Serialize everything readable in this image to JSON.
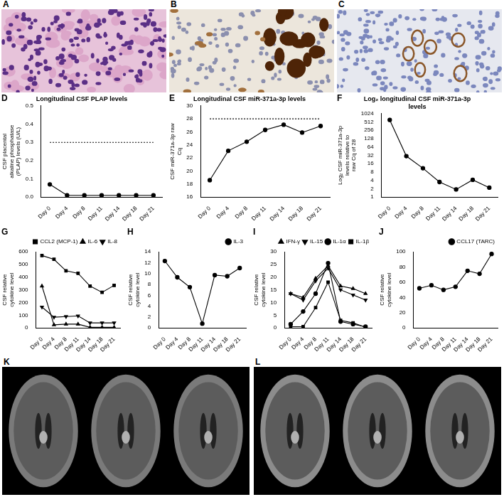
{
  "image_panels": [
    "A",
    "B",
    "C",
    "K",
    "L"
  ],
  "chart_data": [
    {
      "panel": "D",
      "type": "line",
      "title": "Longitudinal CSF PLAP levels",
      "ylabel": "CSF placental alkaline phosphatase (PLAP) levels (U/L)",
      "categories": [
        "Day 0",
        "Day 4",
        "Day 8",
        "Day 11",
        "Day 14",
        "Day 18",
        "Day 21"
      ],
      "series": [
        {
          "color": "#000000",
          "marker": "circle",
          "line_style": "solid",
          "values": [
            0.07,
            0.01,
            0.01,
            0.01,
            0.01,
            0.01,
            0.01
          ]
        },
        {
          "color": "#000000",
          "marker": "none",
          "line_style": "dotted",
          "values": [
            0.3,
            0.3,
            0.3,
            0.3,
            0.3,
            0.3,
            0.3
          ]
        }
      ],
      "ylim": [
        0,
        0.5
      ],
      "yticks": [
        {
          "value": 0,
          "label": "0.0"
        },
        {
          "value": 0.1,
          "label": "0.1"
        },
        {
          "value": 0.2,
          "label": "0.2"
        },
        {
          "value": 0.3,
          "label": "0.3"
        },
        {
          "value": 0.4,
          "label": "0.4"
        },
        {
          "value": 0.5,
          "label": "0.5"
        }
      ],
      "grid": false
    },
    {
      "panel": "E",
      "type": "line",
      "title": "Longitudinal CSF miR-371a-3p levels",
      "ylabel": "CSF miR-371a-3p raw Cq",
      "categories": [
        "Day 0",
        "Day 4",
        "Day 8",
        "Day 11",
        "Day 14",
        "Day 18",
        "Day 21"
      ],
      "series": [
        {
          "color": "#000000",
          "marker": "circle",
          "line_style": "solid",
          "values": [
            18.6,
            23.1,
            24.5,
            26.3,
            27.1,
            25.9,
            26.9
          ]
        },
        {
          "color": "#000000",
          "marker": "none",
          "line_style": "dotted",
          "values": [
            28,
            28,
            28,
            28,
            28,
            28,
            28
          ]
        }
      ],
      "ylim": [
        16,
        30
      ],
      "yticks": [
        16,
        18,
        20,
        22,
        24,
        26,
        28,
        30
      ],
      "grid": false
    },
    {
      "panel": "F",
      "type": "line",
      "title": "Log₂ longitudinal CSF miR-371a-3p levels",
      "ylabel": "Log₂ CSF miR-371a-3p levels relative to raw Cq of 28",
      "categories": [
        "Day 0",
        "Day 4",
        "Day 8",
        "Day 11",
        "Day 14",
        "Day 18",
        "Day 21"
      ],
      "series": [
        {
          "color": "#000000",
          "marker": "circle",
          "line_style": "solid",
          "values": [
            600,
            30,
            11,
            3.5,
            1.9,
            4.2,
            2.2
          ]
        }
      ],
      "log": "y",
      "ylim": [
        1,
        1024
      ],
      "yticks": [
        1,
        2,
        4,
        8,
        16,
        32,
        64,
        128,
        256,
        512,
        1024
      ],
      "grid": false
    },
    {
      "panel": "G",
      "type": "line",
      "ylabel": "CSF relative cytokine level",
      "categories": [
        "Day 0",
        "Day 4",
        "Day 8",
        "Day 11",
        "Day 14",
        "Day 18",
        "Day 21"
      ],
      "series": [
        {
          "name": "CCL2 (MCP-1)",
          "color": "#000000",
          "marker": "square",
          "line_style": "solid",
          "values": [
            570,
            540,
            450,
            430,
            330,
            280,
            335
          ]
        },
        {
          "name": "IL-6",
          "color": "#000000",
          "marker": "triangle",
          "line_style": "solid",
          "values": [
            330,
            25,
            30,
            30,
            5,
            5,
            5
          ]
        },
        {
          "name": "IL-8",
          "color": "#000000",
          "marker": "triangle_down",
          "line_style": "solid",
          "values": [
            165,
            85,
            90,
            95,
            40,
            40,
            40
          ]
        }
      ],
      "ylim": [
        0,
        600
      ],
      "yticks": [
        0,
        100,
        200,
        300,
        400,
        500,
        600
      ],
      "legend": "top right",
      "grid": false
    },
    {
      "panel": "H",
      "type": "line",
      "ylabel": "CSF relative cytokine level",
      "categories": [
        "Day 0",
        "Day 4",
        "Day 8",
        "Day 11",
        "Day 14",
        "Day 18",
        "Day 21"
      ],
      "series": [
        {
          "name": "IL-3",
          "color": "#000000",
          "marker": "circle",
          "line_style": "solid",
          "values": [
            12.3,
            9.3,
            7.5,
            0.8,
            9.7,
            9.5,
            11.0
          ]
        }
      ],
      "ylim": [
        0,
        14
      ],
      "yticks": [
        0,
        2,
        4,
        6,
        8,
        10,
        12,
        14
      ],
      "legend": "top right",
      "grid": false
    },
    {
      "panel": "I",
      "type": "line",
      "ylabel": "CSF relative cytokine level",
      "categories": [
        "Day 0",
        "Day 4",
        "Day 8",
        "Day 11",
        "Day 14",
        "Day 18",
        "Day 21"
      ],
      "series": [
        {
          "name": "IFN-γ",
          "color": "#000000",
          "marker": "triangle",
          "line_style": "solid",
          "values": [
            13.5,
            12,
            19.5,
            24.5,
            16.5,
            15.5,
            13.5
          ]
        },
        {
          "name": "IL-15",
          "color": "#000000",
          "marker": "triangle_down",
          "line_style": "solid",
          "values": [
            13.5,
            11,
            18.5,
            23.5,
            15,
            13,
            11
          ]
        },
        {
          "name": "IL-1α",
          "color": "#000000",
          "marker": "circle",
          "line_style": "solid",
          "values": [
            1.5,
            6.5,
            13.5,
            25.5,
            2.5,
            1.5,
            0.5
          ]
        },
        {
          "name": "IL-1β",
          "color": "#000000",
          "marker": "square",
          "line_style": "solid",
          "values": [
            0.5,
            0.5,
            8,
            18,
            3,
            2,
            0.3
          ]
        }
      ],
      "ylim": [
        0,
        30
      ],
      "yticks": [
        0,
        5,
        10,
        15,
        20,
        25,
        30
      ],
      "legend": "top right",
      "grid": false
    },
    {
      "panel": "J",
      "type": "line",
      "ylabel": "CSF relative cytokine level",
      "categories": [
        "Day 0",
        "Day 4",
        "Day 8",
        "Day 11",
        "Day 14",
        "Day 18",
        "Day 21"
      ],
      "series": [
        {
          "name": "CCL17 (TARC)",
          "color": "#000000",
          "marker": "circle",
          "line_style": "solid",
          "values": [
            52,
            56,
            50,
            54,
            75,
            71,
            97
          ]
        }
      ],
      "ylim": [
        0,
        100
      ],
      "yticks": [
        0,
        20,
        40,
        60,
        80,
        100
      ],
      "legend": "top right",
      "grid": false
    }
  ]
}
